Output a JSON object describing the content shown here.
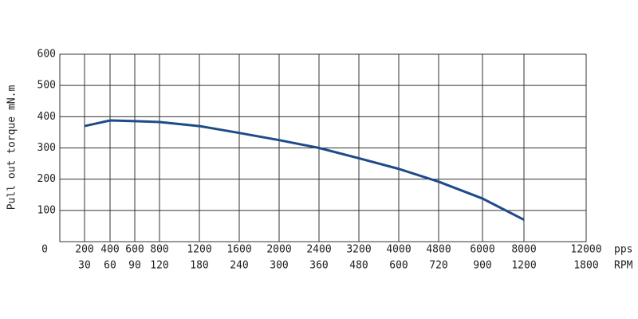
{
  "chart_data": {
    "type": "line",
    "y_label": "Pull out torque mN.m",
    "x_unit": "pps",
    "x2_unit": "RPM",
    "categories": [
      "200",
      "400",
      "600",
      "800",
      "1200",
      "1600",
      "2000",
      "2400",
      "3200",
      "4000",
      "4800",
      "6000",
      "8000",
      "12000"
    ],
    "categories2": [
      "30",
      "60",
      "90",
      "120",
      "180",
      "240",
      "300",
      "360",
      "480",
      "600",
      "720",
      "900",
      "1200",
      "1800"
    ],
    "series": [
      {
        "name": "Pull out torque",
        "color": "#1f4a8a",
        "values": [
          370,
          388,
          386,
          383,
          370,
          348,
          325,
          300,
          267,
          233,
          192,
          138,
          70,
          null
        ]
      }
    ],
    "ylim": [
      0,
      600
    ],
    "yticks": [
      0,
      100,
      200,
      300,
      400,
      500,
      600
    ],
    "grid": true
  }
}
